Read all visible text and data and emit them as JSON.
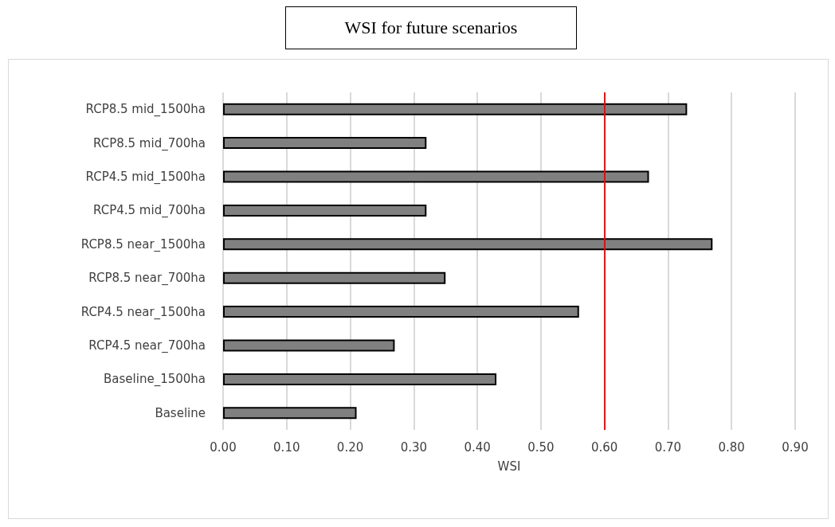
{
  "chart_data": {
    "type": "bar",
    "orientation": "horizontal",
    "title": "WSI for future scenarios",
    "xlabel": "WSI",
    "categories": [
      "RCP8.5 mid_1500ha",
      "RCP8.5 mid_700ha",
      "RCP4.5 mid_1500ha",
      "RCP4.5 mid_700ha",
      "RCP8.5 near_1500ha",
      "RCP8.5 near_700ha",
      "RCP4.5 near_1500ha",
      "RCP4.5 near_700ha",
      "Baseline_1500ha",
      "Baseline"
    ],
    "values": [
      0.73,
      0.32,
      0.67,
      0.32,
      0.77,
      0.35,
      0.56,
      0.27,
      0.43,
      0.21
    ],
    "color": "#808080",
    "xlim": [
      0,
      0.9
    ],
    "xticks": [
      {
        "value": 0,
        "label": "0.00"
      },
      {
        "value": 0.1,
        "label": "0.10"
      },
      {
        "value": 0.2,
        "label": "0.20"
      },
      {
        "value": 0.3,
        "label": "0.30"
      },
      {
        "value": 0.4,
        "label": "0.40"
      },
      {
        "value": 0.5,
        "label": "0.50"
      },
      {
        "value": 0.6,
        "label": "0.60"
      },
      {
        "value": 0.7,
        "label": "0.70"
      },
      {
        "value": 0.8,
        "label": "0.80"
      },
      {
        "value": 0.9,
        "label": "0.90"
      }
    ],
    "grid": "x",
    "ref_lines": [
      {
        "axis": "x",
        "value": 0.6,
        "color": "#ff0000"
      }
    ]
  }
}
